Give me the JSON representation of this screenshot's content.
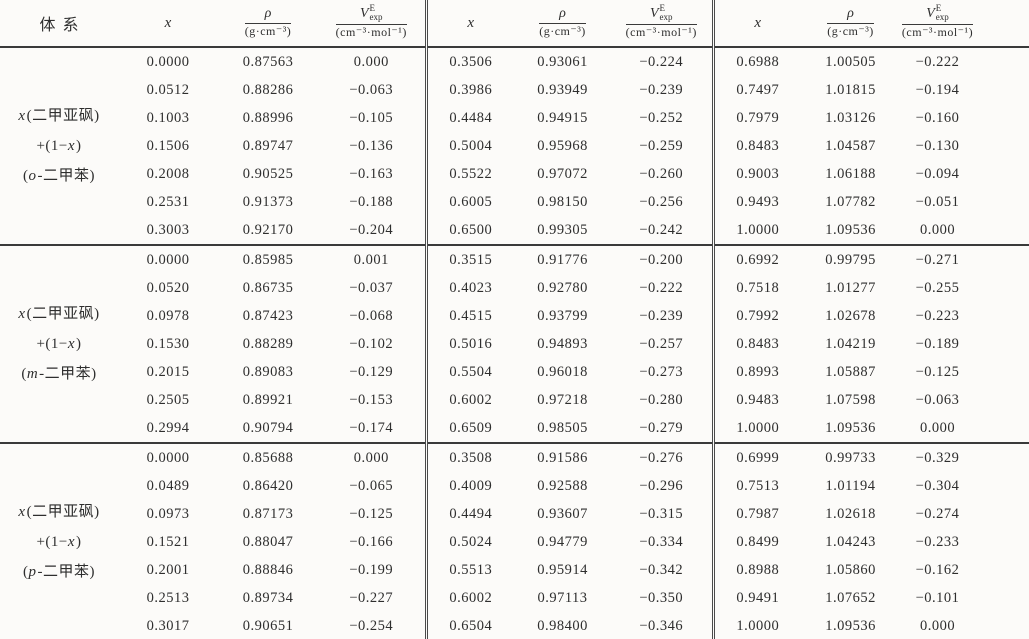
{
  "table": {
    "header": {
      "system_label": "体系",
      "x_label": "x",
      "rho_numerator": "ρ",
      "rho_denominator": "(g·cm⁻³)",
      "ve_base": "V",
      "ve_sup": "E",
      "ve_sub": "exp",
      "ve_denominator": "(cm⁻³·mol⁻¹)"
    },
    "groups": [
      {
        "system_lines": [
          {
            "pre": "",
            "em": "x",
            "post": "(二甲亚砜)"
          },
          {
            "pre": "+(1−",
            "em": "x",
            "post": ")"
          },
          {
            "pre": "(",
            "em": "o",
            "post": "-二甲苯)"
          }
        ],
        "blocks": [
          [
            [
              "0.0000",
              "0.87563",
              "0.000"
            ],
            [
              "0.0512",
              "0.88286",
              "−0.063"
            ],
            [
              "0.1003",
              "0.88996",
              "−0.105"
            ],
            [
              "0.1506",
              "0.89747",
              "−0.136"
            ],
            [
              "0.2008",
              "0.90525",
              "−0.163"
            ],
            [
              "0.2531",
              "0.91373",
              "−0.188"
            ],
            [
              "0.3003",
              "0.92170",
              "−0.204"
            ]
          ],
          [
            [
              "0.3506",
              "0.93061",
              "−0.224"
            ],
            [
              "0.3986",
              "0.93949",
              "−0.239"
            ],
            [
              "0.4484",
              "0.94915",
              "−0.252"
            ],
            [
              "0.5004",
              "0.95968",
              "−0.259"
            ],
            [
              "0.5522",
              "0.97072",
              "−0.260"
            ],
            [
              "0.6005",
              "0.98150",
              "−0.256"
            ],
            [
              "0.6500",
              "0.99305",
              "−0.242"
            ]
          ],
          [
            [
              "0.6988",
              "1.00505",
              "−0.222"
            ],
            [
              "0.7497",
              "1.01815",
              "−0.194"
            ],
            [
              "0.7979",
              "1.03126",
              "−0.160"
            ],
            [
              "0.8483",
              "1.04587",
              "−0.130"
            ],
            [
              "0.9003",
              "1.06188",
              "−0.094"
            ],
            [
              "0.9493",
              "1.07782",
              "−0.051"
            ],
            [
              "1.0000",
              "1.09536",
              "0.000"
            ]
          ]
        ]
      },
      {
        "system_lines": [
          {
            "pre": "",
            "em": "x",
            "post": "(二甲亚砜)"
          },
          {
            "pre": "+(1−",
            "em": "x",
            "post": ")"
          },
          {
            "pre": "(",
            "em": "m",
            "post": "-二甲苯)"
          }
        ],
        "blocks": [
          [
            [
              "0.0000",
              "0.85985",
              "0.001"
            ],
            [
              "0.0520",
              "0.86735",
              "−0.037"
            ],
            [
              "0.0978",
              "0.87423",
              "−0.068"
            ],
            [
              "0.1530",
              "0.88289",
              "−0.102"
            ],
            [
              "0.2015",
              "0.89083",
              "−0.129"
            ],
            [
              "0.2505",
              "0.89921",
              "−0.153"
            ],
            [
              "0.2994",
              "0.90794",
              "−0.174"
            ]
          ],
          [
            [
              "0.3515",
              "0.91776",
              "−0.200"
            ],
            [
              "0.4023",
              "0.92780",
              "−0.222"
            ],
            [
              "0.4515",
              "0.93799",
              "−0.239"
            ],
            [
              "0.5016",
              "0.94893",
              "−0.257"
            ],
            [
              "0.5504",
              "0.96018",
              "−0.273"
            ],
            [
              "0.6002",
              "0.97218",
              "−0.280"
            ],
            [
              "0.6509",
              "0.98505",
              "−0.279"
            ]
          ],
          [
            [
              "0.6992",
              "0.99795",
              "−0.271"
            ],
            [
              "0.7518",
              "1.01277",
              "−0.255"
            ],
            [
              "0.7992",
              "1.02678",
              "−0.223"
            ],
            [
              "0.8483",
              "1.04219",
              "−0.189"
            ],
            [
              "0.8993",
              "1.05887",
              "−0.125"
            ],
            [
              "0.9483",
              "1.07598",
              "−0.063"
            ],
            [
              "1.0000",
              "1.09536",
              "0.000"
            ]
          ]
        ]
      },
      {
        "system_lines": [
          {
            "pre": "",
            "em": "x",
            "post": "(二甲亚砜)"
          },
          {
            "pre": "+(1−",
            "em": "x",
            "post": ")"
          },
          {
            "pre": "(",
            "em": "p",
            "post": "-二甲苯)"
          }
        ],
        "blocks": [
          [
            [
              "0.0000",
              "0.85688",
              "0.000"
            ],
            [
              "0.0489",
              "0.86420",
              "−0.065"
            ],
            [
              "0.0973",
              "0.87173",
              "−0.125"
            ],
            [
              "0.1521",
              "0.88047",
              "−0.166"
            ],
            [
              "0.2001",
              "0.88846",
              "−0.199"
            ],
            [
              "0.2513",
              "0.89734",
              "−0.227"
            ],
            [
              "0.3017",
              "0.90651",
              "−0.254"
            ]
          ],
          [
            [
              "0.3508",
              "0.91586",
              "−0.276"
            ],
            [
              "0.4009",
              "0.92588",
              "−0.296"
            ],
            [
              "0.4494",
              "0.93607",
              "−0.315"
            ],
            [
              "0.5024",
              "0.94779",
              "−0.334"
            ],
            [
              "0.5513",
              "0.95914",
              "−0.342"
            ],
            [
              "0.6002",
              "0.97113",
              "−0.350"
            ],
            [
              "0.6504",
              "0.98400",
              "−0.346"
            ]
          ],
          [
            [
              "0.6999",
              "0.99733",
              "−0.329"
            ],
            [
              "0.7513",
              "1.01194",
              "−0.304"
            ],
            [
              "0.7987",
              "1.02618",
              "−0.274"
            ],
            [
              "0.8499",
              "1.04243",
              "−0.233"
            ],
            [
              "0.8988",
              "1.05860",
              "−0.162"
            ],
            [
              "0.9491",
              "1.07652",
              "−0.101"
            ],
            [
              "1.0000",
              "1.09536",
              "0.000"
            ]
          ]
        ]
      }
    ]
  }
}
